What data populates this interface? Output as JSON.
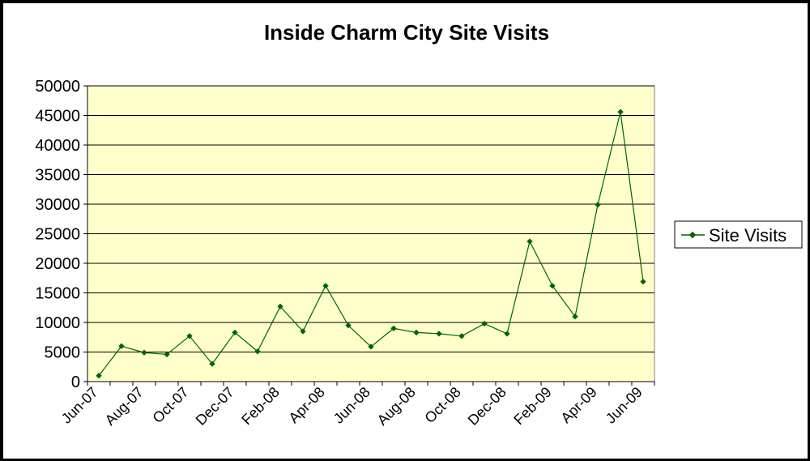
{
  "chart_data": {
    "type": "line",
    "title": "Inside Charm City Site Visits",
    "xlabel": "",
    "ylabel": "",
    "ylim": [
      0,
      50000
    ],
    "yticks": [
      "0",
      "5000",
      "10000",
      "15000",
      "20000",
      "25000",
      "30000",
      "35000",
      "40000",
      "45000",
      "50000"
    ],
    "x": [
      "Jun-07",
      "Jul-07",
      "Aug-07",
      "Sep-07",
      "Oct-07",
      "Nov-07",
      "Dec-07",
      "Jan-08",
      "Feb-08",
      "Mar-08",
      "Apr-08",
      "May-08",
      "Jun-08",
      "Jul-08",
      "Aug-08",
      "Sep-08",
      "Oct-08",
      "Nov-08",
      "Dec-08",
      "Jan-09",
      "Feb-09",
      "Mar-09",
      "Apr-09",
      "May-09",
      "Jun-09"
    ],
    "xtick_labels": [
      "Jun-07",
      "Aug-07",
      "Oct-07",
      "Dec-07",
      "Feb-08",
      "Apr-08",
      "Jun-08",
      "Aug-08",
      "Oct-08",
      "Dec-08",
      "Feb-09",
      "Apr-09",
      "Jun-09"
    ],
    "series": [
      {
        "name": "Site Visits",
        "color": "#006400",
        "values": [
          1000,
          6000,
          4900,
          4600,
          7700,
          3000,
          8300,
          5100,
          12700,
          8500,
          16200,
          9500,
          5900,
          9000,
          8300,
          8100,
          7700,
          9800,
          8100,
          23700,
          16200,
          11000,
          29900,
          45600,
          16900
        ]
      }
    ],
    "grid": true,
    "legend_position": "right",
    "plot_background": "#ffffcc"
  }
}
